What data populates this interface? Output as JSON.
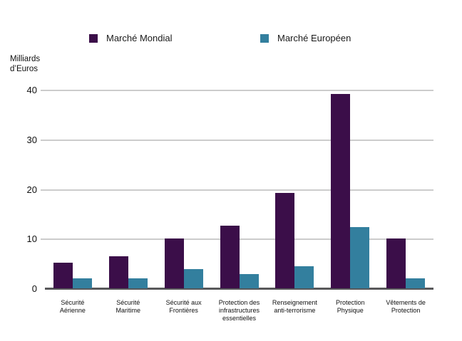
{
  "chart_data": {
    "type": "bar",
    "title": "",
    "unit_label": "Milliards\nd’Euros",
    "categories": [
      "Sécurité Aérienne",
      "Sécurité Maritime",
      "Sécurité aux Frontières",
      "Protection des infrastructures essentielles",
      "Renseignement anti-terrorisme",
      "Protection Physique",
      "Vêtements de Protection"
    ],
    "category_labels": [
      "Sécurité\nAérienne",
      "Sécurité\nMaritime",
      "Sécurité aux\nFrontières",
      "Protection des\ninfrastructures\nessentielles",
      "Renseignement\nanti-terrorisme",
      "Protection\nPhysique",
      "Vêtements de\nProtection"
    ],
    "series": [
      {
        "name": "Marché Mondial",
        "key": "mondial",
        "color": "#3b0e49",
        "values": [
          5.2,
          6.5,
          10,
          12.6,
          19.2,
          39.2,
          10
        ]
      },
      {
        "name": "Marché Européen",
        "key": "europeen",
        "color": "#337f9e",
        "values": [
          2,
          2,
          3.9,
          2.8,
          4.5,
          12.3,
          2
        ]
      }
    ],
    "xlabel": "",
    "ylabel": "Milliards d’Euros",
    "ylim": [
      0,
      40
    ],
    "yticks": [
      0,
      10,
      20,
      30,
      40
    ],
    "grid": true,
    "legend_position": "top"
  },
  "colors": {
    "background": "#ffffff",
    "gridline": "#cccccc",
    "axis_line": "#58585a",
    "text": "#111111"
  }
}
